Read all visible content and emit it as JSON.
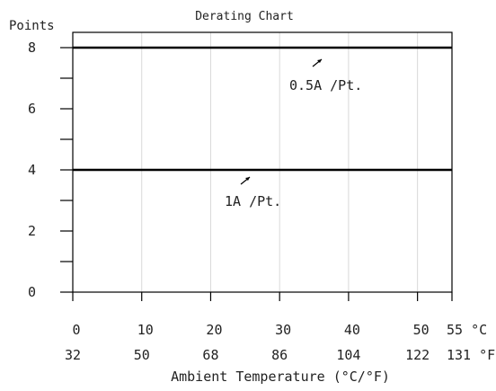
{
  "chart_data": {
    "type": "line",
    "title": "Derating Chart",
    "ylabel": "Points",
    "xlabel": "Ambient Temperature (°C/°F)",
    "xlim": [
      0,
      55
    ],
    "ylim": [
      0,
      8.5
    ],
    "grid": true,
    "x_ticks_c": [
      "0",
      "10",
      "20",
      "30",
      "40",
      "50",
      "55"
    ],
    "x_ticks_f": [
      "32",
      "50",
      "68",
      "86",
      "104",
      "122",
      "131"
    ],
    "x_unit_c": "°C",
    "x_unit_f": "°F",
    "y_ticks": [
      0,
      2,
      4,
      6,
      8
    ],
    "series": [
      {
        "name": "0.5A /Pt.",
        "x": [
          0,
          55
        ],
        "y": [
          8,
          8
        ]
      },
      {
        "name": "1A /Pt.",
        "x": [
          0,
          55
        ],
        "y": [
          4,
          4
        ]
      }
    ]
  }
}
